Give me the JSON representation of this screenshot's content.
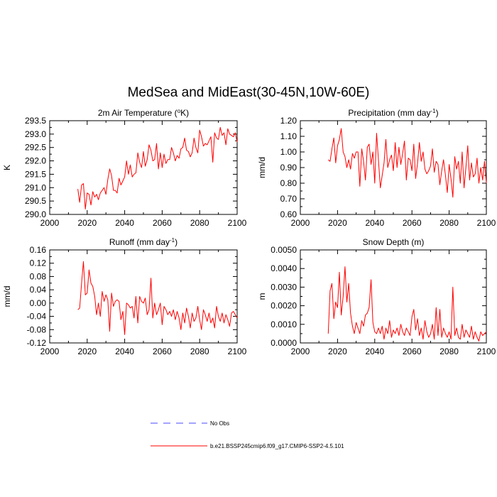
{
  "figure": {
    "title": "MedSea and MidEast(30-45N,10W-60E)"
  },
  "legend": {
    "obs_label": "No Obs",
    "model_label": "b.e21.BSSP245cmip6.f09_g17.CMIP6-SSP2-4.5.101",
    "obs_color": "#4a4aff",
    "model_color": "#ff0000"
  },
  "chart_data": [
    {
      "type": "line",
      "title": "2m Air Temperature (°K)",
      "title_main": "2m Air Temperature (",
      "title_sup": "o",
      "title_tail": "K)",
      "xlabel": "",
      "ylabel": "K",
      "xlim": [
        2000,
        2100
      ],
      "ylim": [
        290.0,
        293.5
      ],
      "xticks": [
        2000,
        2020,
        2040,
        2060,
        2080,
        2100
      ],
      "yticks": [
        290.0,
        290.5,
        291.0,
        291.5,
        292.0,
        292.5,
        293.0,
        293.5
      ],
      "yticklabels": [
        "290.0",
        "290.5",
        "291.0",
        "291.5",
        "292.0",
        "292.5",
        "293.0",
        "293.5"
      ],
      "x_start": 2015,
      "series": [
        {
          "name": "b.e21.BSSP245cmip6.f09_g17.CMIP6-SSP2-4.5.101",
          "values": [
            290.95,
            290.45,
            291.1,
            291.15,
            290.2,
            290.8,
            290.75,
            290.35,
            290.85,
            290.65,
            290.75,
            290.55,
            290.8,
            290.9,
            291.0,
            290.75,
            291.3,
            291.7,
            291.45,
            290.9,
            290.9,
            290.8,
            291.35,
            291.1,
            291.25,
            291.4,
            292.0,
            291.5,
            291.85,
            291.4,
            291.5,
            291.55,
            292.3,
            291.95,
            291.75,
            292.35,
            291.8,
            292.05,
            292.6,
            292.4,
            292.0,
            292.05,
            292.65,
            291.7,
            292.3,
            291.75,
            292.25,
            291.9,
            292.05,
            292.05,
            292.5,
            292.3,
            292.0,
            292.2,
            292.1,
            292.45,
            292.5,
            292.85,
            292.4,
            292.35,
            292.15,
            292.3,
            292.85,
            292.5,
            292.3,
            293.15,
            292.9,
            292.55,
            292.65,
            292.6,
            292.75,
            292.9,
            291.95,
            293.05,
            292.85,
            292.8,
            293.25,
            292.95,
            293.05,
            292.6,
            293.2,
            293.0,
            292.95,
            292.9,
            293.05,
            292.7
          ]
        }
      ]
    },
    {
      "type": "line",
      "title": "Precipitation (mm day-1)",
      "title_main": "Precipitation (mm day",
      "title_sup": "-1",
      "title_tail": ")",
      "xlabel": "",
      "ylabel": "mm/d",
      "xlim": [
        2000,
        2100
      ],
      "ylim": [
        0.6,
        1.2
      ],
      "xticks": [
        2000,
        2020,
        2040,
        2060,
        2080,
        2100
      ],
      "yticks": [
        0.6,
        0.7,
        0.8,
        0.9,
        1.0,
        1.1,
        1.2
      ],
      "yticklabels": [
        "0.60",
        "0.70",
        "0.80",
        "0.90",
        "1.00",
        "1.10",
        "1.20"
      ],
      "x_start": 2015,
      "series": [
        {
          "name": "b.e21.BSSP245cmip6.f09_g17.CMIP6-SSP2-4.5.101",
          "values": [
            0.95,
            0.94,
            1.02,
            1.09,
            0.93,
            1.04,
            1.08,
            1.15,
            1.0,
            0.97,
            0.9,
            0.95,
            0.89,
            0.99,
            0.96,
            1.0,
            1.0,
            0.78,
            1.02,
            0.94,
            0.82,
            1.03,
            1.05,
            0.92,
            1.0,
            0.8,
            1.12,
            0.95,
            0.77,
            0.85,
            0.93,
            1.08,
            0.9,
            0.95,
            0.98,
            0.88,
            1.06,
            0.9,
            1.03,
            0.92,
            0.99,
            1.07,
            0.82,
            0.96,
            0.95,
            0.88,
            1.05,
            0.83,
            0.93,
            1.06,
            0.94,
            1.0,
            0.89,
            0.86,
            0.88,
            0.91,
            1.02,
            0.87,
            0.94,
            0.92,
            0.79,
            0.88,
            0.95,
            0.85,
            0.74,
            0.92,
            0.83,
            0.71,
            0.97,
            0.89,
            0.94,
            0.8,
            1.0,
            0.77,
            0.9,
            1.04,
            0.82,
            0.93,
            0.84,
            0.86,
            0.96,
            0.8,
            0.9,
            0.82,
            0.94,
            0.8
          ]
        }
      ]
    },
    {
      "type": "line",
      "title": "Runoff (mm day-1)",
      "title_main": "Runoff (mm day",
      "title_sup": "-1",
      "title_tail": ")",
      "xlabel": "",
      "ylabel": "mm/d",
      "xlim": [
        2000,
        2100
      ],
      "ylim": [
        -0.12,
        0.16
      ],
      "xticks": [
        2000,
        2020,
        2040,
        2060,
        2080,
        2100
      ],
      "yticks": [
        -0.12,
        -0.08,
        -0.04,
        0.0,
        0.04,
        0.08,
        0.12,
        0.16
      ],
      "yticklabels": [
        "-0.12",
        "-0.08",
        "-0.04",
        "0.00",
        "0.04",
        "0.08",
        "0.12",
        "0.16"
      ],
      "x_start": 2015,
      "series": [
        {
          "name": "b.e21.BSSP245cmip6.f09_g17.CMIP6-SSP2-4.5.101",
          "values": [
            -0.02,
            -0.015,
            0.06,
            0.125,
            0.025,
            0.03,
            0.1,
            0.06,
            0.05,
            0.02,
            -0.035,
            0.0,
            -0.04,
            0.035,
            0.005,
            0.025,
            0.01,
            -0.085,
            0.03,
            -0.01,
            0.005,
            0.01,
            0.005,
            -0.05,
            -0.025,
            -0.095,
            0.0,
            -0.005,
            -0.015,
            -0.01,
            -0.045,
            0.02,
            -0.06,
            0.02,
            0.005,
            0.0,
            0.015,
            -0.035,
            -0.02,
            0.075,
            -0.045,
            0.0,
            -0.035,
            -0.02,
            0.0,
            -0.065,
            -0.01,
            -0.02,
            -0.035,
            -0.025,
            -0.04,
            -0.02,
            -0.05,
            -0.025,
            -0.045,
            -0.08,
            -0.03,
            -0.06,
            -0.015,
            -0.04,
            -0.075,
            -0.03,
            -0.055,
            -0.045,
            -0.01,
            -0.05,
            -0.08,
            -0.02,
            -0.035,
            -0.055,
            -0.03,
            -0.06,
            -0.045,
            -0.075,
            -0.01,
            -0.04,
            -0.055,
            -0.03,
            -0.06,
            -0.035,
            -0.05,
            -0.07,
            -0.03,
            -0.025,
            -0.035,
            -0.045
          ]
        }
      ]
    },
    {
      "type": "line",
      "title": "Snow Depth (m)",
      "title_main": "Snow Depth (m)",
      "title_sup": "",
      "title_tail": "",
      "xlabel": "",
      "ylabel": "m",
      "xlim": [
        2000,
        2100
      ],
      "ylim": [
        0.0,
        0.005
      ],
      "xticks": [
        2000,
        2020,
        2040,
        2060,
        2080,
        2100
      ],
      "yticks": [
        0.0,
        0.001,
        0.002,
        0.003,
        0.004,
        0.005
      ],
      "yticklabels": [
        "0.0000",
        "0.0010",
        "0.0020",
        "0.0030",
        "0.0040",
        "0.0050"
      ],
      "x_start": 2015,
      "series": [
        {
          "name": "b.e21.BSSP245cmip6.f09_g17.CMIP6-SSP2-4.5.101",
          "values": [
            0.0005,
            0.0028,
            0.0032,
            0.0013,
            0.0022,
            0.0019,
            0.0038,
            0.0015,
            0.0025,
            0.0041,
            0.0022,
            0.0032,
            0.0016,
            0.0009,
            0.0005,
            0.0011,
            0.0008,
            0.0005,
            0.0012,
            0.0009,
            0.0015,
            0.0016,
            0.0019,
            0.0034,
            0.0011,
            0.0006,
            0.0005,
            0.0008,
            0.0005,
            0.0009,
            0.0002,
            0.0008,
            0.0005,
            0.0012,
            0.0003,
            0.0007,
            0.0005,
            0.0008,
            0.0004,
            0.001,
            0.0006,
            0.0004,
            0.0008,
            0.0006,
            0.0004,
            0.0014,
            0.0018,
            0.0007,
            0.0013,
            0.0004,
            0.0008,
            0.0002,
            0.0012,
            0.0006,
            0.0003,
            0.0005,
            0.001,
            0.0002,
            0.0019,
            0.0004,
            0.0018,
            0.0003,
            0.0008,
            0.0005,
            0.0003,
            0.0006,
            0.0002,
            0.003,
            0.0004,
            0.0008,
            0.0003,
            0.0002,
            0.001,
            0.0003,
            0.0007,
            0.0005,
            0.0003,
            0.0009,
            0.0002,
            0.0006,
            0.0003,
            0.0001,
            0.0006,
            0.0004,
            0.0005,
            0.0006
          ]
        }
      ]
    }
  ]
}
